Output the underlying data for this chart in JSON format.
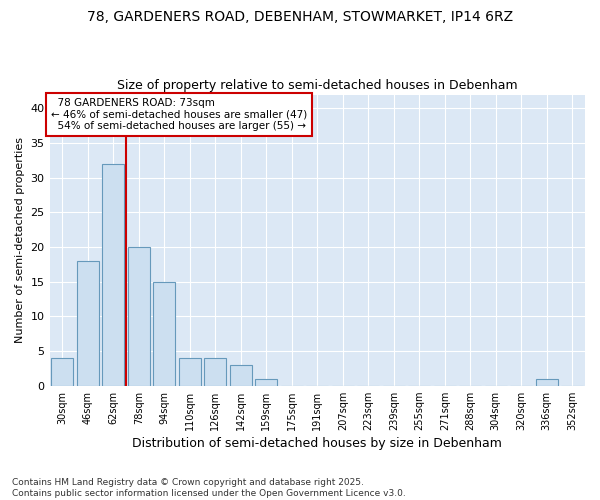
{
  "title_line1": "78, GARDENERS ROAD, DEBENHAM, STOWMARKET, IP14 6RZ",
  "title_line2": "Size of property relative to semi-detached houses in Debenham",
  "xlabel": "Distribution of semi-detached houses by size in Debenham",
  "ylabel": "Number of semi-detached properties",
  "bar_labels": [
    "30sqm",
    "46sqm",
    "62sqm",
    "78sqm",
    "94sqm",
    "110sqm",
    "126sqm",
    "142sqm",
    "159sqm",
    "175sqm",
    "191sqm",
    "207sqm",
    "223sqm",
    "239sqm",
    "255sqm",
    "271sqm",
    "288sqm",
    "304sqm",
    "320sqm",
    "336sqm",
    "352sqm"
  ],
  "bar_values": [
    4,
    18,
    32,
    20,
    15,
    4,
    4,
    3,
    1,
    0,
    0,
    0,
    0,
    0,
    0,
    0,
    0,
    0,
    0,
    1,
    0
  ],
  "bar_color": "#ccdff0",
  "bar_edgecolor": "#6699bb",
  "bar_width": 0.85,
  "property_label": "78 GARDENERS ROAD: 73sqm",
  "pct_smaller": 46,
  "n_smaller": 47,
  "pct_larger": 54,
  "n_larger": 55,
  "vline_color": "#cc0000",
  "vline_x": 2.5,
  "ylim": [
    0,
    42
  ],
  "yticks": [
    0,
    5,
    10,
    15,
    20,
    25,
    30,
    35,
    40
  ],
  "annotation_box_color": "#cc0000",
  "bg_color": "#dce8f5",
  "fig_color": "#ffffff",
  "grid_color": "#ffffff",
  "footer": "Contains HM Land Registry data © Crown copyright and database right 2025.\nContains public sector information licensed under the Open Government Licence v3.0."
}
